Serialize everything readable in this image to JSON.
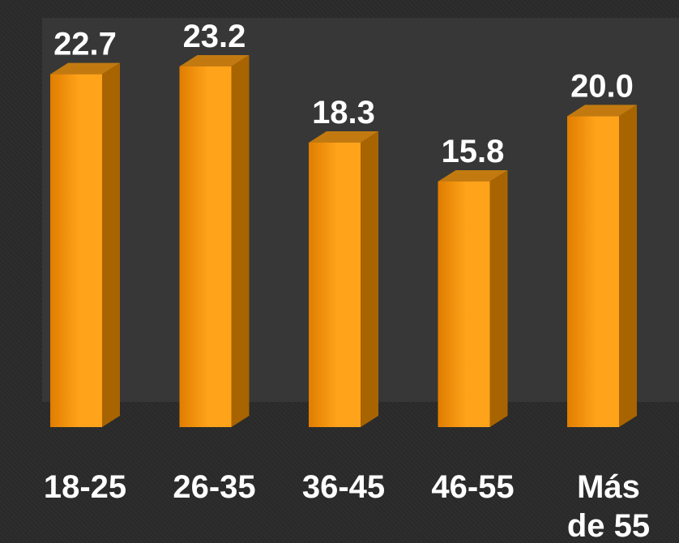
{
  "chart_data": {
    "type": "bar",
    "categories": [
      "18-25",
      "26-35",
      "36-45",
      "46-55",
      "Más de 55"
    ],
    "category_lines": [
      [
        "18-25"
      ],
      [
        "26-35"
      ],
      [
        "36-45"
      ],
      [
        "46-55"
      ],
      [
        "Más",
        "de 55"
      ]
    ],
    "values": [
      22.7,
      23.2,
      18.3,
      15.8,
      20.0
    ],
    "value_labels": [
      "22.7",
      "23.2",
      "18.3",
      "15.8",
      "20.0"
    ],
    "title": "",
    "xlabel": "",
    "ylabel": "",
    "ylim": [
      0,
      25
    ],
    "style": "3d-column",
    "grid": false,
    "legend": "none"
  },
  "colors": {
    "background": "#2a2a2a",
    "plot_panel": "#373737",
    "bar_front_light": "#ffa31a",
    "bar_front_dark": "#e07d00",
    "bar_side": "#a86400",
    "bar_top": "#c27a10",
    "text": "#ffffff"
  }
}
